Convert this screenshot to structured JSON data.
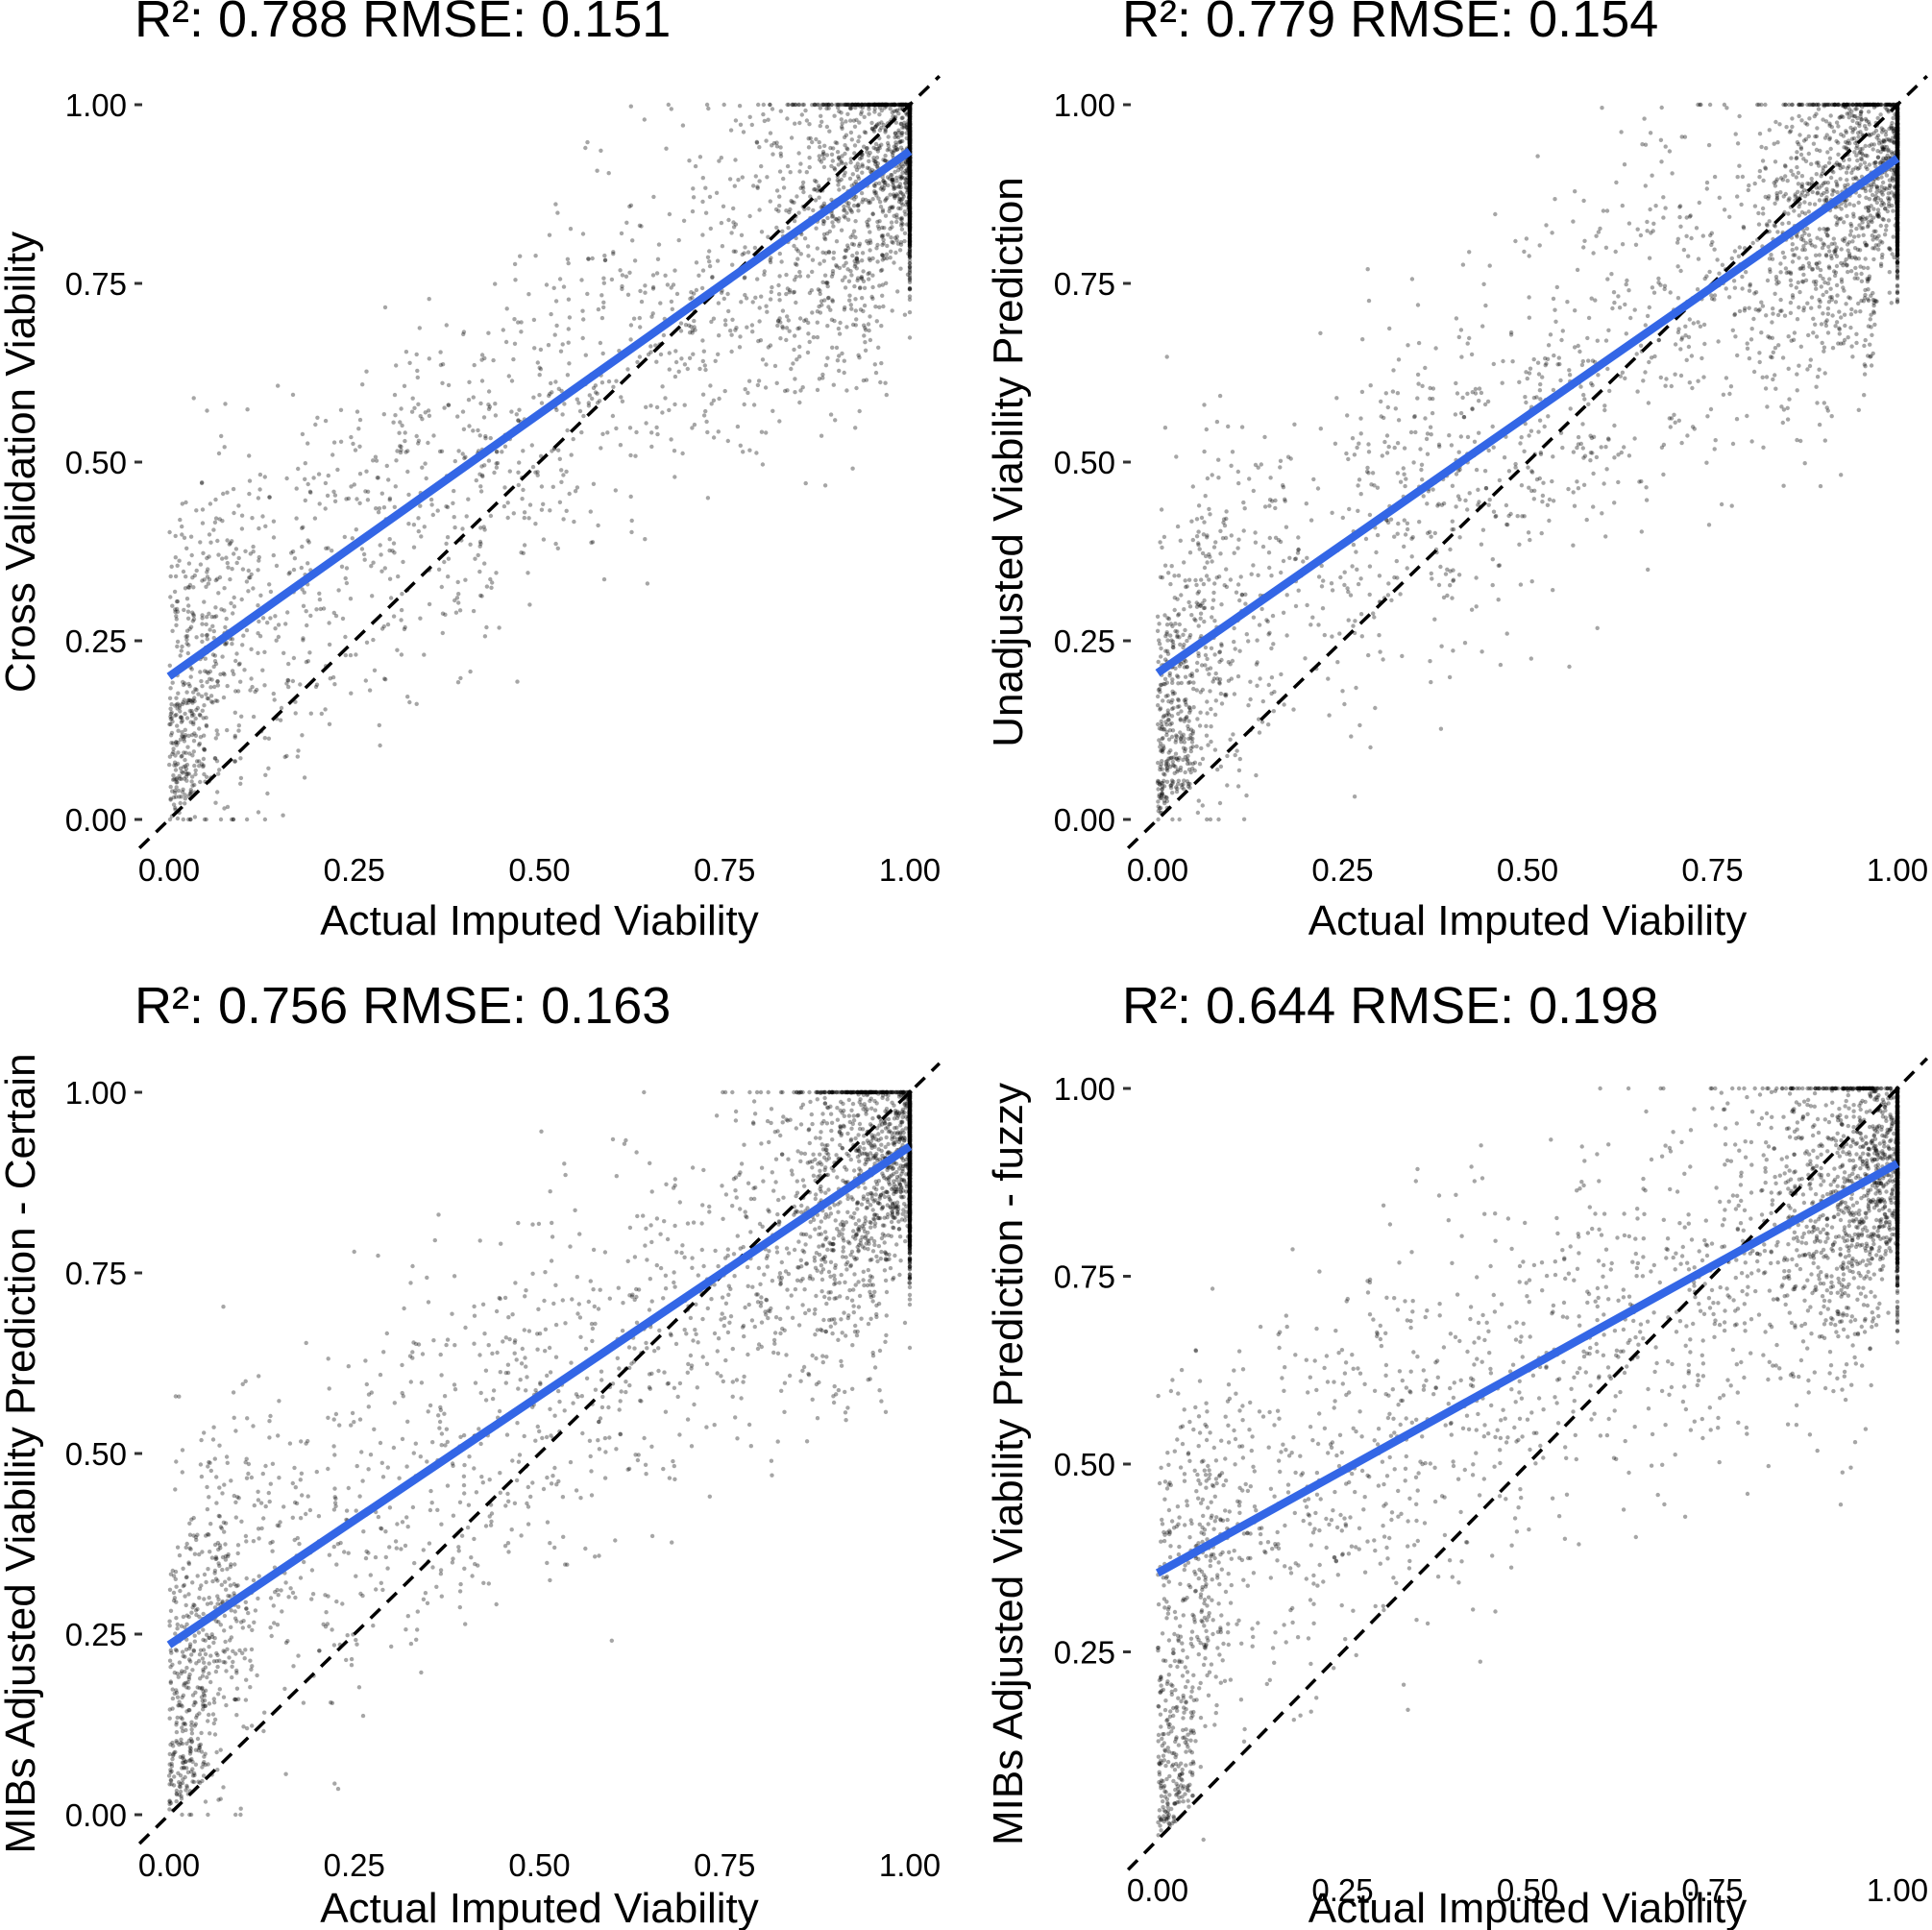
{
  "chart_data": [
    {
      "type": "scatter",
      "title": "R²: 0.788  RMSE: 0.151",
      "xlabel": "Actual Imputed Viability",
      "ylabel": "Cross Validation Viability",
      "xlim": [
        0,
        1
      ],
      "ylim": [
        0,
        1
      ],
      "xticks": [
        "0.00",
        "0.25",
        "0.50",
        "0.75",
        "1.00"
      ],
      "yticks": [
        "0.00",
        "0.25",
        "0.50",
        "0.75",
        "1.00"
      ],
      "reference_line": {
        "style": "dashed",
        "color": "#000000",
        "slope": 1,
        "intercept": 0
      },
      "fit_line": {
        "color": "#3366e6",
        "x": [
          0,
          1
        ],
        "y": [
          0.2,
          0.935
        ]
      },
      "point_color": "#000000",
      "grid": false,
      "n_points_approx": 3600
    },
    {
      "type": "scatter",
      "title": "R²: 0.779  RMSE: 0.154",
      "xlabel": "Actual Imputed Viability",
      "ylabel": "Unadjusted Viability Prediction",
      "xlim": [
        0,
        1
      ],
      "ylim": [
        0,
        1
      ],
      "xticks": [
        "0.00",
        "0.25",
        "0.50",
        "0.75",
        "1.00"
      ],
      "yticks": [
        "0.00",
        "0.25",
        "0.50",
        "0.75",
        "1.00"
      ],
      "reference_line": {
        "style": "dashed",
        "color": "#000000",
        "slope": 1,
        "intercept": 0
      },
      "fit_line": {
        "color": "#3366e6",
        "x": [
          0,
          1
        ],
        "y": [
          0.205,
          0.925
        ]
      },
      "point_color": "#000000",
      "grid": false,
      "n_points_approx": 3600
    },
    {
      "type": "scatter",
      "title": "R²: 0.756  RMSE: 0.163",
      "xlabel": "Actual Imputed Viability",
      "ylabel": "MIBs Adjusted Viability Prediction - Certain",
      "xlim": [
        0,
        1
      ],
      "ylim": [
        0,
        1
      ],
      "xticks": [
        "0.00",
        "0.25",
        "0.50",
        "0.75",
        "1.00"
      ],
      "yticks": [
        "0.00",
        "0.25",
        "0.50",
        "0.75",
        "1.00"
      ],
      "reference_line": {
        "style": "dashed",
        "color": "#000000",
        "slope": 1,
        "intercept": 0
      },
      "fit_line": {
        "color": "#3366e6",
        "x": [
          0,
          1
        ],
        "y": [
          0.235,
          0.925
        ]
      },
      "point_color": "#000000",
      "grid": false,
      "n_points_approx": 3600
    },
    {
      "type": "scatter",
      "title": "R²: 0.644  RMSE: 0.198",
      "xlabel": "Actual Imputed Viability",
      "ylabel": "MIBs Adjusted Viability Prediction - fuzzy",
      "xlim": [
        0,
        1
      ],
      "ylim": [
        0,
        1
      ],
      "xticks": [
        "0.00",
        "0.25",
        "0.50",
        "0.75",
        "1.00"
      ],
      "yticks": [
        "0.25",
        "0.50",
        "0.75",
        "1.00"
      ],
      "reference_line": {
        "style": "dashed",
        "color": "#000000",
        "slope": 1,
        "intercept": 0
      },
      "fit_line": {
        "color": "#3366e6",
        "x": [
          0,
          1
        ],
        "y": [
          0.355,
          0.9
        ]
      },
      "point_color": "#000000",
      "grid": false,
      "n_points_approx": 3600
    }
  ]
}
